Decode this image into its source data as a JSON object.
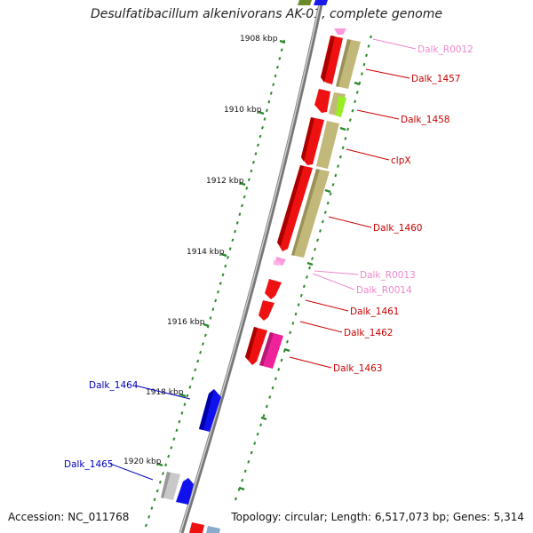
{
  "title": "Desulfatibacillum alkenivorans AK-01, complete genome",
  "footer": {
    "accession": "Accession: NC_011768",
    "summary": "Topology: circular; Length: 6,517,073 bp; Genes: 5,314"
  },
  "colors": {
    "backbone": "#8c8c8c",
    "tick": "#2a8a2a",
    "cds_red": "#ee1111",
    "cds_olive": "#c2b87a",
    "cds_lime": "#99ee22",
    "cds_blue": "#1111ee",
    "cds_magenta": "#ee2299",
    "cds_gray": "#c8c8c8",
    "rna_pink": "#ff99dd",
    "label_red": "#cc0000",
    "label_pink": "#ee88cc",
    "label_blue": "#0000bb"
  },
  "kbp_marks": [
    {
      "label": "1908 kbp",
      "kbp": 1908
    },
    {
      "label": "1910 kbp",
      "kbp": 1910
    },
    {
      "label": "1912 kbp",
      "kbp": 1912
    },
    {
      "label": "1914 kbp",
      "kbp": 1914
    },
    {
      "label": "1916 kbp",
      "kbp": 1916
    },
    {
      "label": "1918 kbp",
      "kbp": 1918
    },
    {
      "label": "1920 kbp",
      "kbp": 1920
    }
  ],
  "features": [
    {
      "name": "Dalk_R0012",
      "color_key": "label_pink",
      "side": "right"
    },
    {
      "name": "Dalk_1457",
      "color_key": "label_red",
      "side": "right"
    },
    {
      "name": "Dalk_1458",
      "color_key": "label_red",
      "side": "right"
    },
    {
      "name": "clpX",
      "color_key": "label_red",
      "side": "right"
    },
    {
      "name": "Dalk_1460",
      "color_key": "label_red",
      "side": "right"
    },
    {
      "name": "Dalk_R0013",
      "color_key": "label_pink",
      "side": "right"
    },
    {
      "name": "Dalk_R0014",
      "color_key": "label_pink",
      "side": "right"
    },
    {
      "name": "Dalk_1461",
      "color_key": "label_red",
      "side": "right"
    },
    {
      "name": "Dalk_1462",
      "color_key": "label_red",
      "side": "right"
    },
    {
      "name": "Dalk_1463",
      "color_key": "label_red",
      "side": "right"
    },
    {
      "name": "Dalk_1464",
      "color_key": "label_blue",
      "side": "left"
    },
    {
      "name": "Dalk_1465",
      "color_key": "label_blue",
      "side": "left"
    }
  ]
}
